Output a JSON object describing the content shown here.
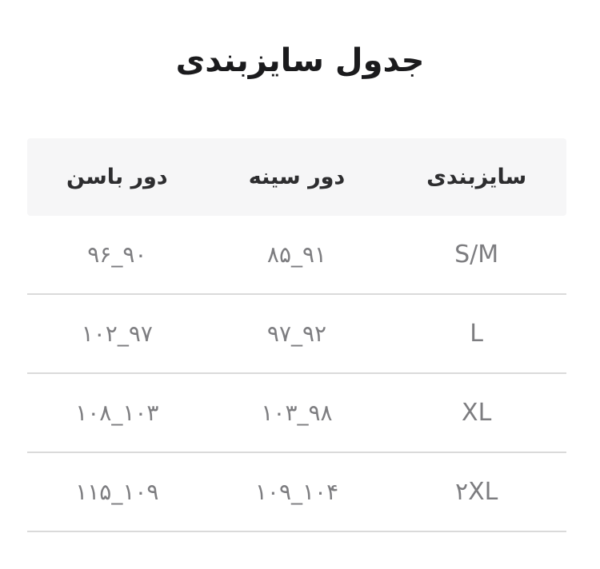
{
  "page": {
    "title": "جدول سایزبندی",
    "direction": "rtl",
    "language": "fa"
  },
  "colors": {
    "background": "#ffffff",
    "header_background": "#f6f6f7",
    "divider": "#dadada",
    "title_text": "#1b1b1d",
    "header_text": "#2d2d2f",
    "cell_text": "#7d7d80"
  },
  "size_table": {
    "headers": {
      "size": "سایزبندی",
      "chest": "دور سینه",
      "hip": "دور باسن"
    },
    "rows": [
      {
        "size": "S/M",
        "chest": "۸۵_۹۱",
        "hip": "۹۶_۹۰"
      },
      {
        "size": "L",
        "chest": "۹۷_۹۲",
        "hip": "۱۰۲_۹۷"
      },
      {
        "size": "XL",
        "chest": "۱۰۳_۹۸",
        "hip": "۱۰۸_۱۰۳"
      },
      {
        "size": "۲XL",
        "chest": "۱۰۹_۱۰۴",
        "hip": "۱۱۵_۱۰۹"
      }
    ]
  }
}
